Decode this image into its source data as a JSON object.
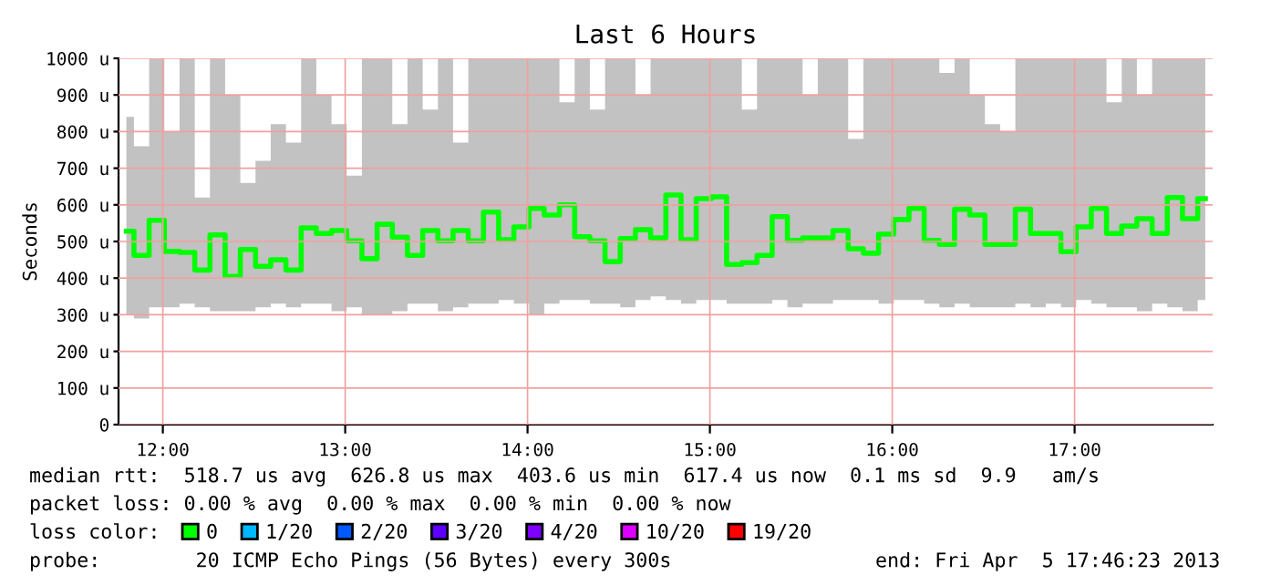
{
  "chart_data": {
    "type": "step",
    "title": "Last 6 Hours",
    "ylabel": "Seconds",
    "x": [
      11.8,
      11.8833,
      11.9667,
      12.05,
      12.1333,
      12.2167,
      12.3,
      12.3833,
      12.4667,
      12.55,
      12.6333,
      12.7167,
      12.8,
      12.8833,
      12.9667,
      13.05,
      13.1333,
      13.2167,
      13.3,
      13.3833,
      13.4667,
      13.55,
      13.6333,
      13.7167,
      13.8,
      13.8833,
      13.9667,
      14.05,
      14.1333,
      14.2167,
      14.3,
      14.3833,
      14.4667,
      14.55,
      14.6333,
      14.7167,
      14.8,
      14.8833,
      14.9667,
      15.05,
      15.1333,
      15.2167,
      15.3,
      15.3833,
      15.4667,
      15.55,
      15.6333,
      15.7167,
      15.8,
      15.8833,
      15.9667,
      16.05,
      16.1333,
      16.2167,
      16.3,
      16.3833,
      16.4667,
      16.55,
      16.6333,
      16.7167,
      16.8,
      16.8833,
      16.9667,
      17.05,
      17.1333,
      17.2167,
      17.3,
      17.3833,
      17.4667,
      17.55,
      17.6333,
      17.7167
    ],
    "series": [
      {
        "name": "0",
        "color": "#00ff00",
        "values": [
          528,
          462,
          558,
          473,
          470,
          422,
          518,
          405,
          478,
          432,
          450,
          422,
          537,
          522,
          530,
          502,
          453,
          547,
          512,
          462,
          530,
          502,
          530,
          502,
          580,
          505,
          540,
          590,
          572,
          600,
          513,
          502,
          445,
          508,
          532,
          510,
          627,
          505,
          617,
          622,
          437,
          442,
          462,
          568,
          503,
          510,
          510,
          530,
          480,
          468,
          520,
          560,
          590,
          503,
          492,
          588,
          572,
          492,
          492,
          588,
          522,
          522,
          472,
          540,
          590,
          522,
          542,
          562,
          522,
          620,
          562,
          617
        ],
        "upper": [
          840,
          760,
          1000,
          800,
          1000,
          620,
          1000,
          900,
          660,
          720,
          820,
          770,
          1000,
          900,
          820,
          680,
          1000,
          1000,
          820,
          1000,
          860,
          1000,
          770,
          1000,
          1000,
          1000,
          1000,
          1000,
          1000,
          880,
          1000,
          860,
          1000,
          1000,
          900,
          1000,
          1000,
          1000,
          1000,
          1000,
          1000,
          860,
          1000,
          1000,
          1000,
          900,
          1000,
          1000,
          780,
          1000,
          1000,
          1000,
          1000,
          1000,
          960,
          1000,
          900,
          820,
          800,
          1000,
          1000,
          1000,
          1000,
          1000,
          1000,
          880,
          1000,
          900,
          1000,
          1000,
          1000,
          1000
        ],
        "lower": [
          300,
          290,
          320,
          320,
          330,
          320,
          310,
          310,
          310,
          320,
          330,
          320,
          330,
          330,
          310,
          320,
          300,
          300,
          310,
          330,
          330,
          310,
          320,
          330,
          330,
          340,
          330,
          300,
          330,
          340,
          340,
          330,
          330,
          320,
          340,
          350,
          340,
          330,
          340,
          340,
          330,
          330,
          330,
          340,
          320,
          330,
          330,
          340,
          340,
          340,
          330,
          340,
          340,
          330,
          320,
          330,
          320,
          320,
          320,
          330,
          320,
          330,
          320,
          340,
          330,
          320,
          320,
          310,
          330,
          320,
          310,
          340
        ]
      },
      {
        "name": "1/20",
        "color": "#00b8ff",
        "values": [
          null,
          null,
          null,
          null,
          null,
          null,
          null,
          null,
          null,
          null,
          null,
          null,
          null,
          null,
          null,
          null,
          null,
          null,
          null,
          null,
          null,
          null,
          null,
          null,
          null,
          null,
          null,
          null,
          null,
          null,
          null,
          null,
          null,
          null,
          null,
          null,
          null,
          null,
          null,
          null,
          null,
          null,
          null,
          null,
          null,
          null,
          null,
          null,
          null,
          null,
          null,
          null,
          null,
          null,
          null,
          null,
          null,
          null,
          null,
          null,
          null,
          null,
          null,
          null,
          null,
          null,
          null,
          null,
          null,
          null,
          null,
          null
        ]
      },
      {
        "name": "2/20",
        "color": "#0059ff",
        "values": [
          null,
          null,
          null,
          null,
          null,
          null,
          null,
          null,
          null,
          null,
          null,
          null,
          null,
          null,
          null,
          null,
          null,
          null,
          null,
          null,
          null,
          null,
          null,
          null,
          null,
          null,
          null,
          null,
          null,
          null,
          null,
          null,
          null,
          null,
          null,
          null,
          null,
          null,
          null,
          null,
          null,
          null,
          null,
          null,
          null,
          null,
          null,
          null,
          null,
          null,
          null,
          null,
          null,
          null,
          null,
          null,
          null,
          null,
          null,
          null,
          null,
          null,
          null,
          null,
          null,
          null,
          null,
          null,
          null,
          null,
          null,
          null
        ]
      },
      {
        "name": "3/20",
        "color": "#5e00ff",
        "values": [
          null,
          null,
          null,
          null,
          null,
          null,
          null,
          null,
          null,
          null,
          null,
          null,
          null,
          null,
          null,
          null,
          null,
          null,
          null,
          null,
          null,
          null,
          null,
          null,
          null,
          null,
          null,
          null,
          null,
          null,
          null,
          null,
          null,
          null,
          null,
          null,
          null,
          null,
          null,
          null,
          null,
          null,
          null,
          null,
          null,
          null,
          null,
          null,
          null,
          null,
          null,
          null,
          null,
          null,
          null,
          null,
          null,
          null,
          null,
          null,
          null,
          null,
          null,
          null,
          null,
          null,
          null,
          null,
          null,
          null,
          null,
          null
        ]
      },
      {
        "name": "4/20",
        "color": "#7e00ff",
        "values": [
          null,
          null,
          null,
          null,
          null,
          null,
          null,
          null,
          null,
          null,
          null,
          null,
          null,
          null,
          null,
          null,
          null,
          null,
          null,
          null,
          null,
          null,
          null,
          null,
          null,
          null,
          null,
          null,
          null,
          null,
          null,
          null,
          null,
          null,
          null,
          null,
          null,
          null,
          null,
          null,
          null,
          null,
          null,
          null,
          null,
          null,
          null,
          null,
          null,
          null,
          null,
          null,
          null,
          null,
          null,
          null,
          null,
          null,
          null,
          null,
          null,
          null,
          null,
          null,
          null,
          null,
          null,
          null,
          null,
          null,
          null,
          null
        ]
      },
      {
        "name": "10/20",
        "color": "#dd00ff",
        "values": [
          null,
          null,
          null,
          null,
          null,
          null,
          null,
          null,
          null,
          null,
          null,
          null,
          null,
          null,
          null,
          null,
          null,
          null,
          null,
          null,
          null,
          null,
          null,
          null,
          null,
          null,
          null,
          null,
          null,
          null,
          null,
          null,
          null,
          null,
          null,
          null,
          null,
          null,
          null,
          null,
          null,
          null,
          null,
          null,
          null,
          null,
          null,
          null,
          null,
          null,
          null,
          null,
          null,
          null,
          null,
          null,
          null,
          null,
          null,
          null,
          null,
          null,
          null,
          null,
          null,
          null,
          null,
          null,
          null,
          null,
          null,
          null
        ]
      },
      {
        "name": "19/20",
        "color": "#ff0000",
        "values": [
          null,
          null,
          null,
          null,
          null,
          null,
          null,
          null,
          null,
          null,
          null,
          null,
          null,
          null,
          null,
          null,
          null,
          null,
          null,
          null,
          null,
          null,
          null,
          null,
          null,
          null,
          null,
          null,
          null,
          null,
          null,
          null,
          null,
          null,
          null,
          null,
          null,
          null,
          null,
          null,
          null,
          null,
          null,
          null,
          null,
          null,
          null,
          null,
          null,
          null,
          null,
          null,
          null,
          null,
          null,
          null,
          null,
          null,
          null,
          null,
          null,
          null,
          null,
          null,
          null,
          null,
          null,
          null,
          null,
          null,
          null,
          null
        ]
      }
    ],
    "xlim": [
      11.757,
      17.757
    ],
    "xticks": [
      {
        "value": 12,
        "label": "12:00"
      },
      {
        "value": 13,
        "label": "13:00"
      },
      {
        "value": 14,
        "label": "14:00"
      },
      {
        "value": 15,
        "label": "15:00"
      },
      {
        "value": 16,
        "label": "16:00"
      },
      {
        "value": 17,
        "label": "17:00"
      }
    ],
    "ylim": [
      0,
      1000
    ],
    "yticks": [
      0,
      {
        "value": 100,
        "label": "100 u"
      },
      {
        "value": 200,
        "label": "200 u"
      },
      {
        "value": 300,
        "label": "300 u"
      },
      {
        "value": 400,
        "label": "400 u"
      },
      {
        "value": 500,
        "label": "500 u"
      },
      {
        "value": 600,
        "label": "600 u"
      },
      {
        "value": 700,
        "label": "700 u"
      },
      {
        "value": 800,
        "label": "800 u"
      },
      {
        "value": 900,
        "label": "900 u"
      },
      {
        "value": 1000,
        "label": "1000 u"
      }
    ],
    "grid": true,
    "legend": "bottom",
    "legend_title": "loss color:",
    "annotations": [
      "median rtt:  518.7 us avg  626.8 us max  403.6 us min  617.4 us now  0.1 ms sd  9.9   am/s",
      "packet loss: 0.00 % avg  0.00 % max  0.00 % min  0.00 % now",
      "probe:        20 ICMP Echo Pings (56 Bytes) every 300s",
      "end: Fri Apr  5 17:46:23 2013"
    ]
  }
}
